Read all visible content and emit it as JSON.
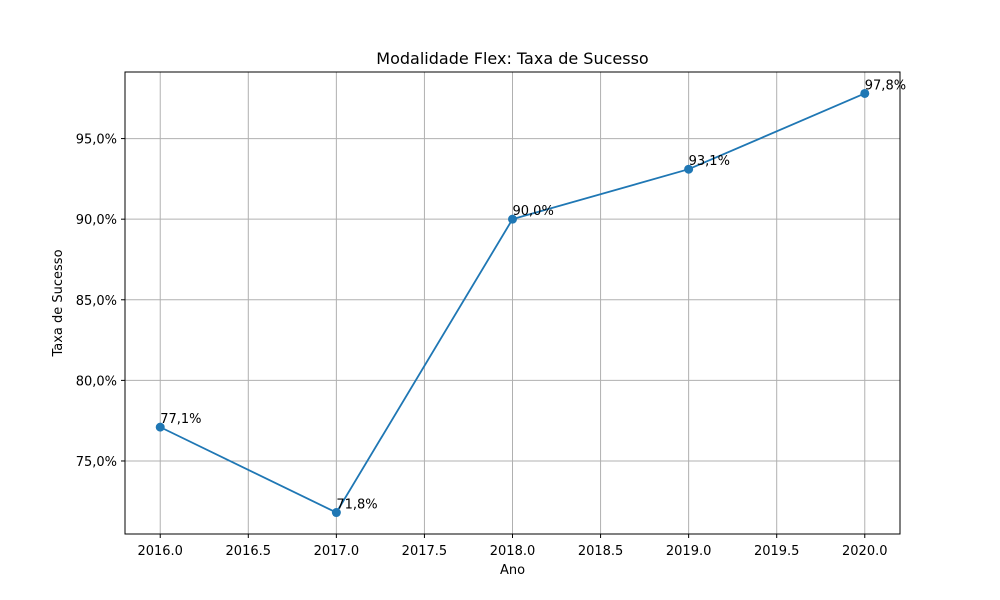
{
  "chart_data": {
    "type": "line",
    "title": "Modalidade Flex: Taxa de Sucesso",
    "xlabel": "Ano",
    "ylabel": "Taxa de Sucesso",
    "x": [
      2016,
      2017,
      2018,
      2019,
      2020
    ],
    "series": [
      {
        "values": [
          77.1,
          71.8,
          90.0,
          93.1,
          97.8
        ],
        "data_labels": [
          "77,1%",
          "71,8%",
          "90,0%",
          "93,1%",
          "97,8%"
        ],
        "color": "#1f77b4",
        "marker": "circle"
      }
    ],
    "xticks": [
      2016.0,
      2016.5,
      2017.0,
      2017.5,
      2018.0,
      2018.5,
      2019.0,
      2019.5,
      2020.0
    ],
    "xtick_labels": [
      "2016.0",
      "2016.5",
      "2017.0",
      "2017.5",
      "2018.0",
      "2018.5",
      "2019.0",
      "2019.5",
      "2020.0"
    ],
    "yticks": [
      75,
      80,
      85,
      90,
      95
    ],
    "ytick_labels": [
      "75,0%",
      "80,0%",
      "85,0%",
      "90,0%",
      "95,0%"
    ],
    "xlim": [
      2015.8,
      2020.2
    ],
    "ylim": [
      70.47,
      99.13
    ],
    "grid": true
  }
}
